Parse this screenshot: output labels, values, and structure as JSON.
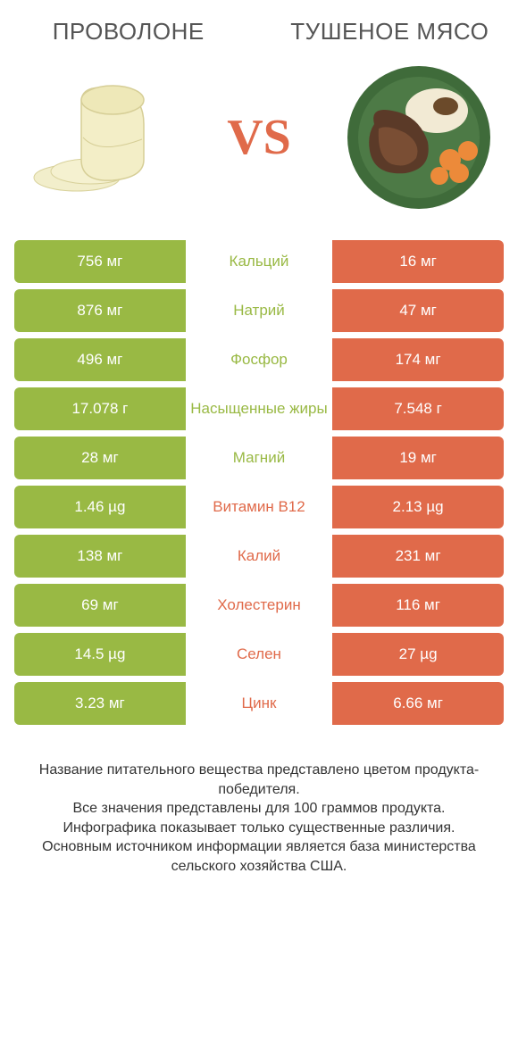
{
  "colors": {
    "green": "#99b944",
    "orange": "#e06a4a",
    "text": "#333333",
    "header_text": "#555555"
  },
  "header": {
    "left": "ПРОВОЛОНЕ",
    "right": "ТУШЕНОЕ МЯСО",
    "vs": "VS"
  },
  "rows": [
    {
      "left": "756 мг",
      "label": "Кальций",
      "right": "16 мг",
      "winner": "left"
    },
    {
      "left": "876 мг",
      "label": "Натрий",
      "right": "47 мг",
      "winner": "left"
    },
    {
      "left": "496 мг",
      "label": "Фосфор",
      "right": "174 мг",
      "winner": "left"
    },
    {
      "left": "17.078 г",
      "label": "Насыщенные жиры",
      "right": "7.548 г",
      "winner": "left"
    },
    {
      "left": "28 мг",
      "label": "Магний",
      "right": "19 мг",
      "winner": "left"
    },
    {
      "left": "1.46 µg",
      "label": "Витамин B12",
      "right": "2.13 µg",
      "winner": "right"
    },
    {
      "left": "138 мг",
      "label": "Калий",
      "right": "231 мг",
      "winner": "right"
    },
    {
      "left": "69 мг",
      "label": "Холестерин",
      "right": "116 мг",
      "winner": "right"
    },
    {
      "left": "14.5 µg",
      "label": "Селен",
      "right": "27 µg",
      "winner": "right"
    },
    {
      "left": "3.23 мг",
      "label": "Цинк",
      "right": "6.66 мг",
      "winner": "right"
    }
  ],
  "footer": {
    "l1": "Название питательного вещества представлено цветом продукта-победителя.",
    "l2": "Все значения представлены для 100 граммов продукта.",
    "l3": "Инфографика показывает только существенные различия.",
    "l4": "Основным источником информации является база министерства сельского хозяйства США."
  }
}
